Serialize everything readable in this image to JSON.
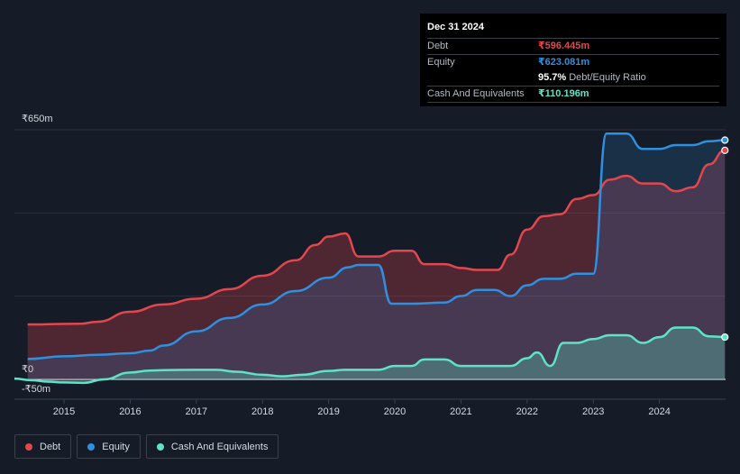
{
  "tooltip": {
    "date": "Dec 31 2024",
    "debt_label": "Debt",
    "debt_value": "₹596.445m",
    "equity_label": "Equity",
    "equity_value": "₹623.081m",
    "ratio_value": "95.7%",
    "ratio_label": "Debt/Equity Ratio",
    "cash_label": "Cash And Equivalents",
    "cash_value": "₹110.196m"
  },
  "legend": {
    "debt": "Debt",
    "equity": "Equity",
    "cash": "Cash And Equivalents"
  },
  "colors": {
    "debt": "#e2474e",
    "equity": "#2f90e0",
    "cash": "#5fe3c7",
    "background": "#151b27"
  },
  "chart_data": {
    "type": "area",
    "title": "",
    "xlabel": "",
    "ylabel": "",
    "ylim": [
      -50,
      650
    ],
    "y_tick_labels": [
      "₹650m",
      "₹0",
      "-₹50m"
    ],
    "x_ticks": [
      2015,
      2016,
      2017,
      2018,
      2019,
      2020,
      2021,
      2022,
      2023,
      2024
    ],
    "x_tick_labels": [
      "2015",
      "2016",
      "2017",
      "2018",
      "2019",
      "2020",
      "2021",
      "2022",
      "2023",
      "2024"
    ],
    "xlim": [
      2014.25,
      2025.0
    ],
    "series": [
      {
        "name": "Debt",
        "points": [
          [
            2014.45,
            143
          ],
          [
            2015.25,
            145
          ],
          [
            2015.5,
            150
          ],
          [
            2016.0,
            176
          ],
          [
            2016.5,
            195
          ],
          [
            2017.0,
            210
          ],
          [
            2017.5,
            235
          ],
          [
            2018.0,
            270
          ],
          [
            2018.5,
            310
          ],
          [
            2018.8,
            350
          ],
          [
            2019.0,
            372
          ],
          [
            2019.25,
            380
          ],
          [
            2019.45,
            320
          ],
          [
            2019.75,
            320
          ],
          [
            2020.0,
            335
          ],
          [
            2020.25,
            335
          ],
          [
            2020.45,
            300
          ],
          [
            2020.75,
            300
          ],
          [
            2021.0,
            290
          ],
          [
            2021.25,
            285
          ],
          [
            2021.55,
            285
          ],
          [
            2021.75,
            325
          ],
          [
            2022.0,
            390
          ],
          [
            2022.25,
            425
          ],
          [
            2022.5,
            430
          ],
          [
            2022.75,
            470
          ],
          [
            2023.0,
            480
          ],
          [
            2023.25,
            520
          ],
          [
            2023.5,
            530
          ],
          [
            2023.75,
            510
          ],
          [
            2024.0,
            510
          ],
          [
            2024.25,
            490
          ],
          [
            2024.5,
            500
          ],
          [
            2024.75,
            560
          ],
          [
            2024.99,
            596.445
          ]
        ]
      },
      {
        "name": "Equity",
        "points": [
          [
            2014.45,
            53
          ],
          [
            2015.0,
            60
          ],
          [
            2015.5,
            64
          ],
          [
            2016.0,
            68
          ],
          [
            2016.3,
            75
          ],
          [
            2016.5,
            88
          ],
          [
            2017.0,
            125
          ],
          [
            2017.5,
            160
          ],
          [
            2018.0,
            195
          ],
          [
            2018.5,
            230
          ],
          [
            2019.0,
            265
          ],
          [
            2019.3,
            292
          ],
          [
            2019.45,
            298
          ],
          [
            2019.75,
            298
          ],
          [
            2019.95,
            197
          ],
          [
            2020.25,
            197
          ],
          [
            2020.75,
            200
          ],
          [
            2021.0,
            217
          ],
          [
            2021.25,
            233
          ],
          [
            2021.5,
            233
          ],
          [
            2021.75,
            217
          ],
          [
            2022.0,
            245
          ],
          [
            2022.25,
            262
          ],
          [
            2022.5,
            262
          ],
          [
            2022.75,
            275
          ],
          [
            2023.0,
            275
          ],
          [
            2023.2,
            640
          ],
          [
            2023.5,
            640
          ],
          [
            2023.75,
            600
          ],
          [
            2024.0,
            600
          ],
          [
            2024.25,
            610
          ],
          [
            2024.5,
            610
          ],
          [
            2024.75,
            620
          ],
          [
            2024.99,
            623.081
          ]
        ]
      },
      {
        "name": "Cash And Equivalents",
        "points": [
          [
            2014.25,
            2
          ],
          [
            2014.5,
            -2
          ],
          [
            2014.75,
            -6
          ],
          [
            2015.0,
            -8
          ],
          [
            2015.3,
            -9
          ],
          [
            2015.6,
            0
          ],
          [
            2016.0,
            18
          ],
          [
            2016.3,
            23
          ],
          [
            2016.5,
            24
          ],
          [
            2017.0,
            25
          ],
          [
            2017.3,
            25
          ],
          [
            2017.6,
            20
          ],
          [
            2018.0,
            12
          ],
          [
            2018.3,
            8
          ],
          [
            2018.6,
            12
          ],
          [
            2019.0,
            22
          ],
          [
            2019.25,
            25
          ],
          [
            2019.75,
            25
          ],
          [
            2020.0,
            35
          ],
          [
            2020.25,
            35
          ],
          [
            2020.45,
            52
          ],
          [
            2020.75,
            52
          ],
          [
            2021.0,
            35
          ],
          [
            2021.25,
            35
          ],
          [
            2021.5,
            35
          ],
          [
            2021.75,
            35
          ],
          [
            2022.0,
            55
          ],
          [
            2022.15,
            70
          ],
          [
            2022.35,
            35
          ],
          [
            2022.55,
            95
          ],
          [
            2022.75,
            95
          ],
          [
            2023.0,
            105
          ],
          [
            2023.25,
            115
          ],
          [
            2023.5,
            115
          ],
          [
            2023.75,
            95
          ],
          [
            2024.0,
            110
          ],
          [
            2024.25,
            135
          ],
          [
            2024.5,
            135
          ],
          [
            2024.75,
            112
          ],
          [
            2024.99,
            110.196
          ]
        ]
      }
    ]
  }
}
